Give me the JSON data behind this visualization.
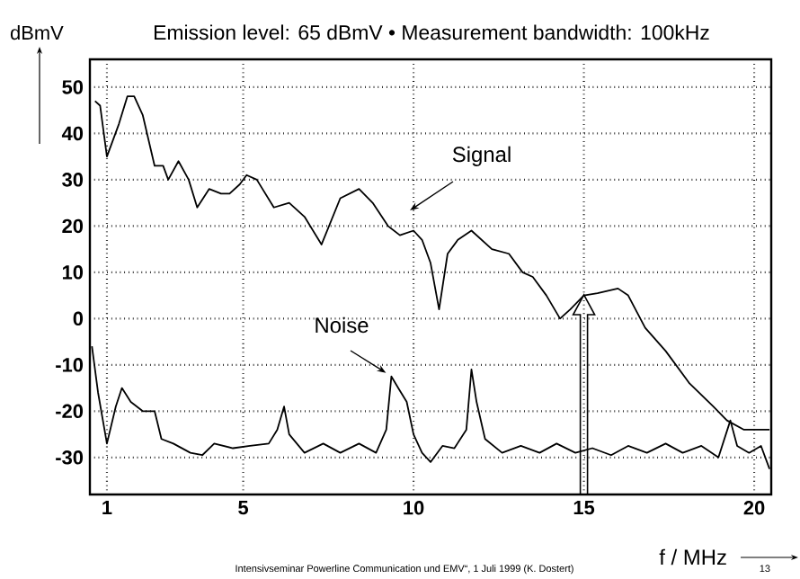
{
  "chart_data": {
    "type": "line",
    "title": "Emission level: 65 dBmV • Measurement bandwidth: 100kHz",
    "xlabel": "f / MHz",
    "ylabel": "dBmV",
    "xlim": [
      0.5,
      20.5
    ],
    "ylim": [
      -38,
      56
    ],
    "xticks": [
      1,
      5,
      10,
      15,
      20
    ],
    "yticks": [
      -30,
      -20,
      -10,
      0,
      10,
      20,
      30,
      40,
      50
    ],
    "grid": true,
    "marker": "none",
    "line_style": "solid",
    "series": [
      {
        "color": "#000000",
        "x": [
          0.65,
          0.8,
          1.0,
          1.35,
          1.6,
          1.8,
          2.05,
          2.4,
          2.65,
          2.8,
          3.1,
          3.4,
          3.65,
          4.0,
          4.35,
          4.6,
          4.9,
          5.1,
          5.4,
          5.9,
          6.35,
          6.8,
          7.3,
          7.85,
          8.4,
          8.8,
          9.25,
          9.6,
          10.0,
          10.25,
          10.5,
          10.75,
          11.0,
          11.3,
          11.7,
          12.3,
          12.8,
          13.2,
          13.5,
          13.9,
          14.3,
          14.6,
          15.0,
          15.4,
          16.0,
          16.3,
          16.8,
          17.4,
          18.1,
          18.8,
          19.2,
          19.7,
          20.45
        ],
        "values": [
          47,
          46,
          35,
          42,
          48,
          48,
          44,
          33,
          33,
          30,
          34,
          30,
          24,
          28,
          27,
          27,
          29,
          31,
          30,
          24,
          25,
          22,
          16,
          26,
          28,
          25,
          20,
          18,
          19,
          17,
          12,
          2,
          14,
          17,
          19,
          15,
          14,
          10,
          9,
          5,
          0,
          2,
          5,
          5.5,
          6.5,
          5,
          -2,
          -7,
          -14,
          -19,
          -22,
          -24,
          -24
        ]
      },
      {
        "color": "#000000",
        "x": [
          0.56,
          0.74,
          1.0,
          1.26,
          1.44,
          1.7,
          2.05,
          2.4,
          2.6,
          2.95,
          3.45,
          3.8,
          4.15,
          4.7,
          5.2,
          5.75,
          6.0,
          6.2,
          6.35,
          6.8,
          7.35,
          7.85,
          8.4,
          8.9,
          9.2,
          9.35,
          9.55,
          9.8,
          10.0,
          10.25,
          10.5,
          10.85,
          11.2,
          11.55,
          11.7,
          11.85,
          12.1,
          12.6,
          13.15,
          13.7,
          14.2,
          14.75,
          15.25,
          15.8,
          16.3,
          16.85,
          17.4,
          17.9,
          18.45,
          18.95,
          19.3,
          19.5,
          19.85,
          20.2,
          20.45
        ],
        "values": [
          -6,
          -16,
          -27,
          -19,
          -15,
          -18,
          -20,
          -20,
          -26,
          -27,
          -29,
          -29.5,
          -27,
          -28,
          -27.5,
          -27,
          -24,
          -19,
          -25,
          -29,
          -27,
          -29,
          -27,
          -29,
          -24,
          -12.5,
          -15,
          -18,
          -25,
          -29,
          -31,
          -27.5,
          -28,
          -24,
          -11,
          -18,
          -26,
          -29,
          -27.5,
          -29,
          -27,
          -29,
          -28,
          -29.5,
          -27.5,
          -29,
          -27,
          -29,
          -27.5,
          -30,
          -22,
          -27.5,
          -29,
          -27.5,
          -32.5
        ]
      }
    ],
    "annotations": [
      "Signal",
      {
        "text": "Noise",
        "x": 9.35,
        "y": -12.5
      },
      "Intensivseminar Powerline Communication und EMV“, 1 Juli 1999 (K. Dostert)",
      "13"
    ]
  }
}
